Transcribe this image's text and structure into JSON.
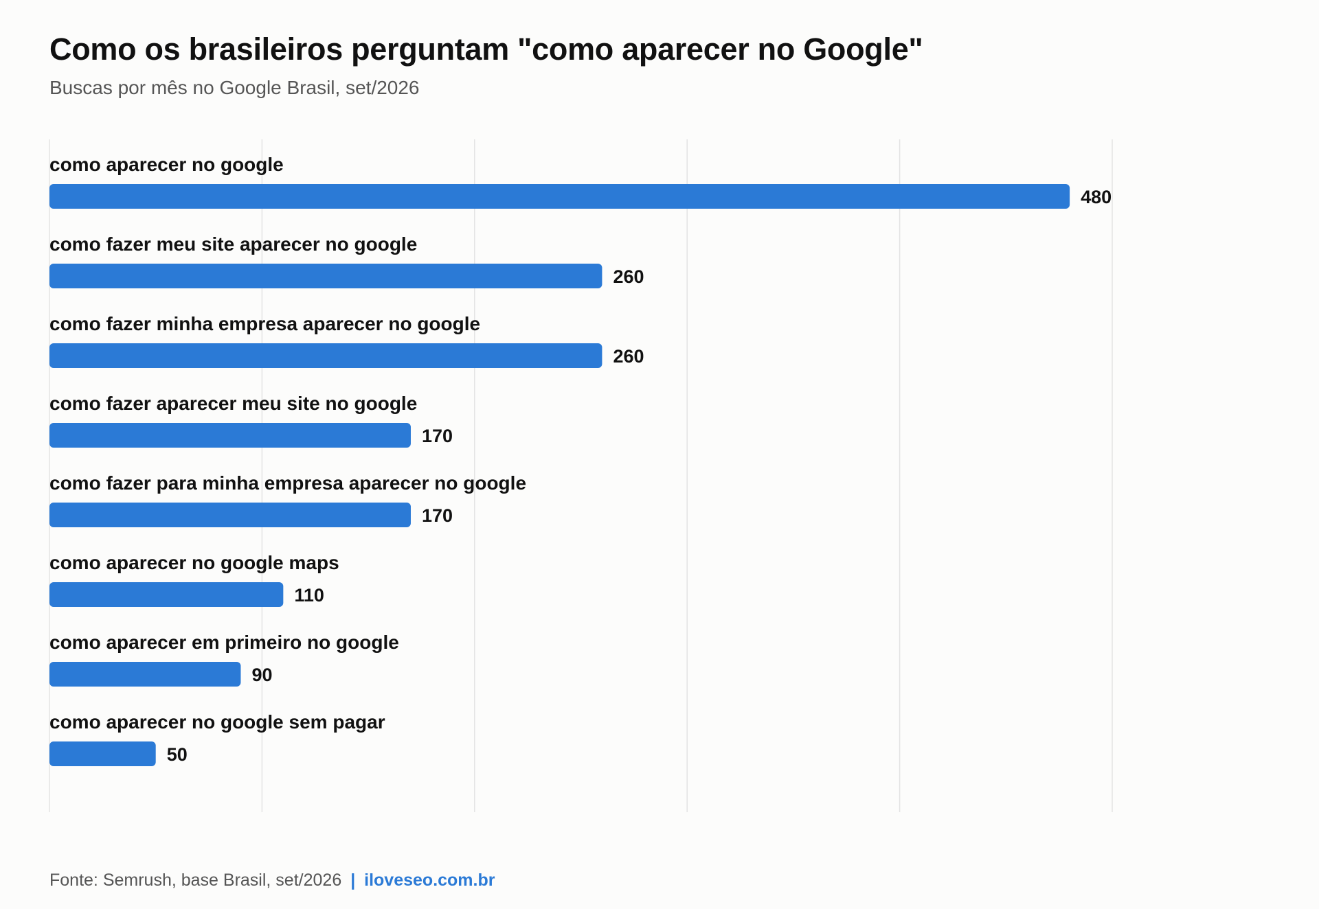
{
  "title": "Como os brasileiros perguntam \"como aparecer no Google\"",
  "subtitle": "Buscas por mês no Google Brasil, set/2026",
  "footer": {
    "source": "Fonte: Semrush, base Brasil, set/2026",
    "separator": "|",
    "brand": "iloveseo.com.br"
  },
  "colors": {
    "bar": "#2b7ad6",
    "grid": "#e3e3e3",
    "brand": "#2b7ad6"
  },
  "chart_data": {
    "type": "bar",
    "orientation": "horizontal",
    "title": "Como os brasileiros perguntam \"como aparecer no Google\"",
    "subtitle": "Buscas por mês no Google Brasil, set/2026",
    "categories": [
      "como aparecer no google",
      "como fazer meu site aparecer no google",
      "como fazer minha empresa aparecer no google",
      "como fazer aparecer meu site no google",
      "como fazer para minha empresa aparecer no google",
      "como aparecer no google maps",
      "como aparecer em primeiro no google",
      "como aparecer no google sem pagar"
    ],
    "values": [
      480,
      260,
      260,
      170,
      170,
      110,
      90,
      50
    ],
    "xlim": [
      0,
      500
    ],
    "gridlines": [
      0,
      100,
      200,
      300,
      400,
      500
    ],
    "grid": true,
    "axis_tick_labels_visible": false,
    "data_labels": true,
    "legend": "none"
  }
}
